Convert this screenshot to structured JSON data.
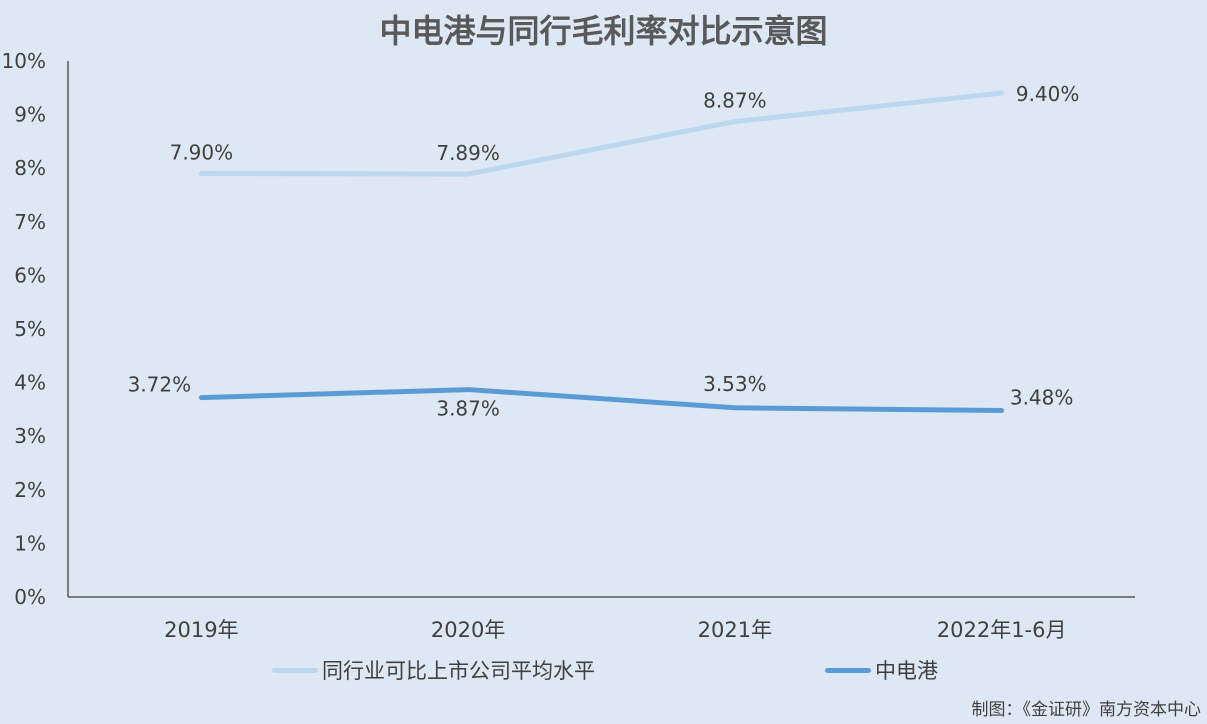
{
  "title": "中电港与同行毛利率对比示意图",
  "credit": "制图：《金证研》南方资本中心",
  "colors": {
    "background": "#dde8f4",
    "peer_line": "#bdd7ee",
    "company_line": "#5b9bd5",
    "axis": "#595959",
    "text": "#404040"
  },
  "chart_data": {
    "type": "line",
    "title": "中电港与同行毛利率对比示意图",
    "categories": [
      "2019年",
      "2020年",
      "2021年",
      "2022年1-6月"
    ],
    "ylim": [
      0,
      10
    ],
    "yticks": [
      "0%",
      "1%",
      "2%",
      "3%",
      "4%",
      "5%",
      "6%",
      "7%",
      "8%",
      "9%",
      "10%"
    ],
    "grid": false,
    "legend_position": "bottom",
    "series": [
      {
        "name": "同行业可比上市公司平均水平",
        "values": [
          7.9,
          7.89,
          8.87,
          9.4
        ],
        "labels": [
          "7.90%",
          "7.89%",
          "8.87%",
          "9.40%"
        ],
        "color": "#bdd7ee"
      },
      {
        "name": "中电港",
        "values": [
          3.72,
          3.87,
          3.53,
          3.48
        ],
        "labels": [
          "3.72%",
          "3.87%",
          "3.53%",
          "3.48%"
        ],
        "color": "#5b9bd5"
      }
    ]
  }
}
